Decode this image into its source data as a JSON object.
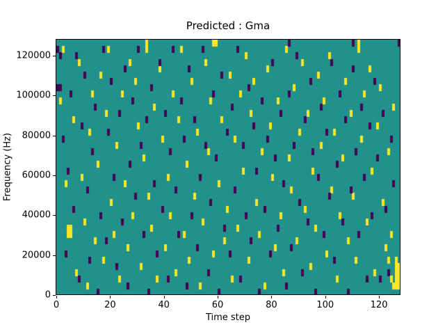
{
  "figure": {
    "title": "Predicted : Gma",
    "xlabel": "Time step",
    "ylabel": "Frequency (Hz)"
  },
  "chart_data": {
    "type": "heatmap",
    "title": "Predicted : Gma",
    "xlabel": "Time step",
    "ylabel": "Frequency (Hz)",
    "xlim": [
      0,
      128
    ],
    "ylim": [
      0,
      128000
    ],
    "x_ticks": [
      0,
      20,
      40,
      60,
      80,
      100,
      120
    ],
    "y_ticks": [
      0,
      20000,
      40000,
      60000,
      80000,
      100000,
      120000
    ],
    "grid": {
      "cols": 128,
      "rows": 40,
      "hz_per_row": 3200
    },
    "legend": "none",
    "colormap": "viridis",
    "background_value": 0.5,
    "colors": {
      "background": "#21918c",
      "high": "#fde725",
      "low": "#440154"
    },
    "cells": {
      "high": [
        [
          1,
          30
        ],
        [
          3,
          17
        ],
        [
          4,
          9
        ],
        [
          5,
          9
        ],
        [
          4,
          10
        ],
        [
          5,
          10
        ],
        [
          2,
          38
        ],
        [
          6,
          27
        ],
        [
          8,
          36
        ],
        [
          9,
          18
        ],
        [
          7,
          3
        ],
        [
          10,
          11
        ],
        [
          12,
          25
        ],
        [
          13,
          31
        ],
        [
          11,
          1
        ],
        [
          14,
          8
        ],
        [
          16,
          34
        ],
        [
          15,
          20
        ],
        [
          17,
          5
        ],
        [
          18,
          28
        ],
        [
          20,
          14
        ],
        [
          19,
          38
        ],
        [
          21,
          9
        ],
        [
          22,
          23
        ],
        [
          24,
          31
        ],
        [
          23,
          2
        ],
        [
          25,
          17
        ],
        [
          27,
          36
        ],
        [
          26,
          7
        ],
        [
          28,
          12
        ],
        [
          30,
          26
        ],
        [
          29,
          33
        ],
        [
          31,
          4
        ],
        [
          32,
          21
        ],
        [
          34,
          15
        ],
        [
          33,
          38
        ],
        [
          35,
          10
        ],
        [
          36,
          29
        ],
        [
          37,
          2
        ],
        [
          39,
          24
        ],
        [
          38,
          35
        ],
        [
          40,
          7
        ],
        [
          41,
          18
        ],
        [
          43,
          31
        ],
        [
          42,
          12
        ],
        [
          44,
          3
        ],
        [
          45,
          27
        ],
        [
          46,
          38
        ],
        [
          47,
          9
        ],
        [
          48,
          20
        ],
        [
          50,
          33
        ],
        [
          49,
          5
        ],
        [
          51,
          15
        ],
        [
          52,
          25
        ],
        [
          53,
          1
        ],
        [
          55,
          36
        ],
        [
          54,
          11
        ],
        [
          56,
          22
        ],
        [
          57,
          30
        ],
        [
          58,
          6
        ],
        [
          60,
          17
        ],
        [
          59,
          39
        ],
        [
          61,
          27
        ],
        [
          62,
          8
        ],
        [
          63,
          13
        ],
        [
          64,
          34
        ],
        [
          65,
          2
        ],
        [
          66,
          24
        ],
        [
          68,
          31
        ],
        [
          67,
          10
        ],
        [
          69,
          19
        ],
        [
          70,
          37
        ],
        [
          71,
          5
        ],
        [
          72,
          28
        ],
        [
          74,
          14
        ],
        [
          73,
          33
        ],
        [
          75,
          9
        ],
        [
          76,
          22
        ],
        [
          77,
          1
        ],
        [
          78,
          35
        ],
        [
          80,
          18
        ],
        [
          79,
          26
        ],
        [
          81,
          7
        ],
        [
          82,
          30
        ],
        [
          83,
          12
        ],
        [
          85,
          38
        ],
        [
          84,
          3
        ],
        [
          86,
          21
        ],
        [
          87,
          16
        ],
        [
          88,
          32
        ],
        [
          90,
          25
        ],
        [
          89,
          8
        ],
        [
          91,
          36
        ],
        [
          92,
          13
        ],
        [
          93,
          28
        ],
        [
          94,
          4
        ],
        [
          95,
          19
        ],
        [
          97,
          34
        ],
        [
          96,
          10
        ],
        [
          98,
          23
        ],
        [
          99,
          30
        ],
        [
          100,
          6
        ],
        [
          102,
          16
        ],
        [
          101,
          37
        ],
        [
          103,
          25
        ],
        [
          104,
          2
        ],
        [
          105,
          12
        ],
        [
          107,
          33
        ],
        [
          106,
          21
        ],
        [
          108,
          8
        ],
        [
          109,
          28
        ],
        [
          110,
          15
        ],
        [
          112,
          38
        ],
        [
          111,
          5
        ],
        [
          113,
          24
        ],
        [
          114,
          31
        ],
        [
          115,
          11
        ],
        [
          117,
          19
        ],
        [
          116,
          35
        ],
        [
          118,
          3
        ],
        [
          119,
          26
        ],
        [
          121,
          14
        ],
        [
          120,
          32
        ],
        [
          122,
          7
        ],
        [
          123,
          22
        ],
        [
          124,
          9
        ],
        [
          125,
          29
        ],
        [
          123,
          5
        ],
        [
          124,
          2
        ],
        [
          125,
          1
        ],
        [
          126,
          1
        ],
        [
          126,
          2
        ],
        [
          126,
          3
        ],
        [
          126,
          4
        ],
        [
          127,
          1
        ],
        [
          127,
          2
        ],
        [
          127,
          3
        ],
        [
          127,
          4
        ],
        [
          126,
          5
        ],
        [
          112,
          39
        ],
        [
          58,
          39
        ],
        [
          33,
          39
        ]
      ],
      "low": [
        [
          0,
          38
        ],
        [
          1,
          37
        ],
        [
          0,
          32
        ],
        [
          1,
          32
        ],
        [
          2,
          24
        ],
        [
          3,
          6
        ],
        [
          5,
          31
        ],
        [
          4,
          19
        ],
        [
          6,
          13
        ],
        [
          7,
          37
        ],
        [
          8,
          2
        ],
        [
          9,
          26
        ],
        [
          10,
          34
        ],
        [
          11,
          16
        ],
        [
          12,
          5
        ],
        [
          13,
          22
        ],
        [
          14,
          29
        ],
        [
          15,
          0
        ],
        [
          16,
          12
        ],
        [
          17,
          38
        ],
        [
          18,
          8
        ],
        [
          19,
          25
        ],
        [
          20,
          33
        ],
        [
          21,
          18
        ],
        [
          22,
          4
        ],
        [
          23,
          28
        ],
        [
          24,
          11
        ],
        [
          25,
          35
        ],
        [
          26,
          1
        ],
        [
          27,
          20
        ],
        [
          28,
          30
        ],
        [
          29,
          15
        ],
        [
          30,
          38
        ],
        [
          31,
          23
        ],
        [
          32,
          9
        ],
        [
          33,
          27
        ],
        [
          34,
          0
        ],
        [
          35,
          32
        ],
        [
          36,
          17
        ],
        [
          37,
          6
        ],
        [
          38,
          36
        ],
        [
          39,
          13
        ],
        [
          40,
          28
        ],
        [
          41,
          2
        ],
        [
          42,
          22
        ],
        [
          43,
          38
        ],
        [
          44,
          16
        ],
        [
          45,
          9
        ],
        [
          46,
          30
        ],
        [
          47,
          24
        ],
        [
          48,
          1
        ],
        [
          49,
          35
        ],
        [
          50,
          12
        ],
        [
          51,
          27
        ],
        [
          52,
          7
        ],
        [
          53,
          18
        ],
        [
          54,
          38
        ],
        [
          55,
          23
        ],
        [
          56,
          3
        ],
        [
          57,
          14
        ],
        [
          58,
          31
        ],
        [
          59,
          21
        ],
        [
          60,
          0
        ],
        [
          61,
          34
        ],
        [
          62,
          10
        ],
        [
          63,
          25
        ],
        [
          64,
          6
        ],
        [
          65,
          29
        ],
        [
          66,
          16
        ],
        [
          67,
          38
        ],
        [
          68,
          2
        ],
        [
          69,
          23
        ],
        [
          70,
          12
        ],
        [
          71,
          32
        ],
        [
          72,
          8
        ],
        [
          73,
          26
        ],
        [
          74,
          19
        ],
        [
          75,
          0
        ],
        [
          76,
          30
        ],
        [
          77,
          13
        ],
        [
          78,
          24
        ],
        [
          79,
          6
        ],
        [
          80,
          36
        ],
        [
          81,
          21
        ],
        [
          82,
          10
        ],
        [
          83,
          28
        ],
        [
          84,
          17
        ],
        [
          85,
          1
        ],
        [
          86,
          31
        ],
        [
          87,
          7
        ],
        [
          88,
          23
        ],
        [
          89,
          37
        ],
        [
          90,
          14
        ],
        [
          91,
          3
        ],
        [
          92,
          27
        ],
        [
          93,
          11
        ],
        [
          94,
          33
        ],
        [
          95,
          22
        ],
        [
          96,
          0
        ],
        [
          97,
          18
        ],
        [
          98,
          29
        ],
        [
          99,
          9
        ],
        [
          100,
          25
        ],
        [
          101,
          15
        ],
        [
          102,
          36
        ],
        [
          103,
          5
        ],
        [
          104,
          20
        ],
        [
          105,
          31
        ],
        [
          106,
          11
        ],
        [
          107,
          27
        ],
        [
          108,
          0
        ],
        [
          109,
          16
        ],
        [
          110,
          35
        ],
        [
          111,
          22
        ],
        [
          112,
          9
        ],
        [
          113,
          29
        ],
        [
          114,
          18
        ],
        [
          115,
          2
        ],
        [
          116,
          26
        ],
        [
          117,
          12
        ],
        [
          118,
          33
        ],
        [
          119,
          21
        ],
        [
          120,
          2
        ],
        [
          121,
          28
        ],
        [
          122,
          13
        ],
        [
          123,
          3
        ],
        [
          124,
          24
        ],
        [
          125,
          17
        ],
        [
          127,
          39
        ],
        [
          110,
          39
        ],
        [
          86,
          39
        ]
      ]
    }
  }
}
